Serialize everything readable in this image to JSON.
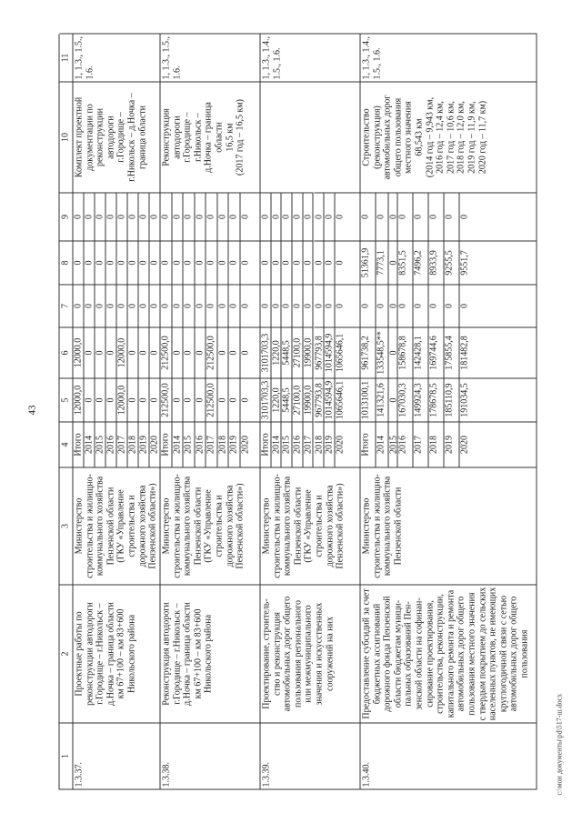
{
  "page_number": "43",
  "footer": "c:\\мои документы\\pd\\517-ш.docx",
  "header_numbers": [
    "1",
    "2",
    "3",
    "4",
    "5",
    "6",
    "7",
    "8",
    "9",
    "10",
    "11"
  ],
  "rows": [
    {
      "id": "1.3.37.",
      "name": "Проектные работы по\nреконструкции автодороги\nг.Городище – г.Никольск –\nд.Ночка – граница области\nкм 67+100 – км 83+600\nНикольского района",
      "executor": "Министерство\nстроительства и жилищно-\nкоммунального хозяйства\nПензенской области\n(ГКУ «Управление\nстроительства и\nдорожного хозяйства\nПензенской области»)",
      "years": [
        "Итого",
        "2014",
        "2015",
        "2016",
        "2017",
        "2018",
        "2019",
        "2020"
      ],
      "c5": [
        "12000,0",
        "0",
        "0",
        "0",
        "12000,0",
        "0",
        "0",
        "0"
      ],
      "c6": [
        "12000,0",
        "0",
        "0",
        "0",
        "12000,0",
        "0",
        "0",
        "0"
      ],
      "c7": [
        "0",
        "0",
        "0",
        "0",
        "0",
        "0",
        "0",
        "0"
      ],
      "c8": [
        "0",
        "0",
        "0",
        "0",
        "0",
        "0",
        "0",
        "0"
      ],
      "c9": [
        "0",
        "0",
        "0",
        "0",
        "0",
        "0",
        "0",
        "0"
      ],
      "result": "Комплект проектной\nдокументации по\nреконструкции\nавтодороги\nг.Городище –\nг.Никольск – д.Ночка –\nграница области",
      "indicators": "1, 1.3., 1.5.,\n1.6."
    },
    {
      "id": "1.3.38.",
      "name": "Реконструкция автодороги\nг.Городище – г.Никольск –\nд.Ночка – граница области\nкм 67+100 – км 83+600\nНикольского района",
      "executor": "Министерство\nстроительства и жилищно-\nкоммунального хозяйства\nПензенской области\n(ГКУ «Управление\nстроительства и\nдорожного хозяйства\nПензенской области»)",
      "years": [
        "Итого",
        "2014",
        "2015",
        "2016",
        "2017",
        "2018",
        "2019",
        "2020"
      ],
      "c5": [
        "212500,0",
        "0",
        "0",
        "0",
        "212500,0",
        "0",
        "0",
        "0"
      ],
      "c6": [
        "212500,0",
        "0",
        "0",
        "0",
        "212500,0",
        "0",
        "0",
        "0"
      ],
      "c7": [
        "0",
        "0",
        "0",
        "0",
        "0",
        "0",
        "0",
        "0"
      ],
      "c8": [
        "0",
        "0",
        "0",
        "0",
        "0",
        "0",
        "0",
        "0"
      ],
      "c9": [
        "0",
        "0",
        "0",
        "0",
        "0",
        "0",
        "0",
        "0"
      ],
      "result": "Реконструкция\nавтодороги\nг.Городище –\nг.Никольск –\nд.Ночка – граница\nобласти\n16,5 км\n(2017 год – 16,5 км)",
      "indicators": "1, 1.3., 1.5.,\n1.6."
    },
    {
      "id": "1.3.39.",
      "name": "Проектирование, строитель-\nство и реконструкция\nавтомобильных дорог общего\nпользования регионального\nили межмуниципального\nзначения и искусственных\nсооружений на них",
      "executor": "Министерство\nстроительства и жилищно-\nкоммунального хозяйства\nПензенской области\n(ГКУ «Управление\nстроительства и\nдорожного хозяйства\nПензенской области»)",
      "years": [
        "Итого",
        "2014",
        "2015",
        "2016",
        "2017",
        "2018",
        "2019",
        "2020"
      ],
      "c5": [
        "3101703,3",
        "1220,0",
        "5448,5",
        "27100,0",
        "19900,0",
        "967793,8",
        "1014594,9",
        "1065646,1"
      ],
      "c6": [
        "3101703,3",
        "1220,0",
        "5448,5",
        "27100,0",
        "19900,0",
        "967793,8",
        "1014594,9",
        "1065646,1"
      ],
      "c7": [
        "0",
        "0",
        "0",
        "0",
        "0",
        "0",
        "0",
        "0"
      ],
      "c8": [
        "0",
        "0",
        "0",
        "0",
        "0",
        "0",
        "0",
        "0"
      ],
      "c9": [
        "0",
        "0",
        "0",
        "0",
        "0",
        "0",
        "0",
        "0"
      ],
      "result": "",
      "indicators": "1, 1.3., 1.4.,\n1.5., 1.6."
    },
    {
      "id": "1.3.40.",
      "name": "Предоставление субсидий за счет\nбюджетных ассигнований\nдорожного фонда Пензенской\nобласти бюджетам муници-\nпальных образований Пен-\nзенской области на софинан-\nсирование проектирования,\nстроительства, реконструкции,\nкапитального ремонта и ремонта\nавтомобильных дорог общего\nпользования местного значения\nс твердым покрытием до сельских\nнаселенных пунктов, не имеющих\nкруглогодичной связи с сетью\nавтомобильных дорог общего\nпользования",
      "executor": "Министерство\nстроительства и жилищно-\nкоммунального хозяйства\nПензенской области",
      "years": [
        "Итого",
        "2014",
        "2015",
        "2016",
        "2017",
        "2018",
        "2019",
        "2020"
      ],
      "c5": [
        "1013100,1",
        "141321,6",
        "0",
        "167030,3",
        "149924,3",
        "178678,5",
        "185110,9",
        "191034,5"
      ],
      "c6": [
        "961738,2",
        "133548,5**",
        "0",
        "158678,8",
        "142428,1",
        "169744,6",
        "175855,4",
        "181482,8"
      ],
      "c7": [
        "0",
        "0",
        "0",
        "0",
        "0",
        "0",
        "0",
        "0"
      ],
      "c8": [
        "51361,9",
        "7773,1",
        "0",
        "8351,5",
        "7496,2",
        "8933,9",
        "9255,5",
        "9551,7"
      ],
      "c9": [
        "0",
        "0",
        "0",
        "0",
        "0",
        "0",
        "0",
        "0"
      ],
      "result": "Строительство\n(реконструкция)\nавтомобильных дорог\nобщего пользования\nместного значения\n68,543 км\n(2014 год – 9,943 км,\n2016 год – 12,4 км,\n2017 год – 10,6 км,\n2018 год – 12,0 км,\n2019 год – 11,9 км,\n2020 год – 11,7 км)",
      "indicators": "1, 1.3., 1.4.,\n1.5., 1.6."
    }
  ]
}
